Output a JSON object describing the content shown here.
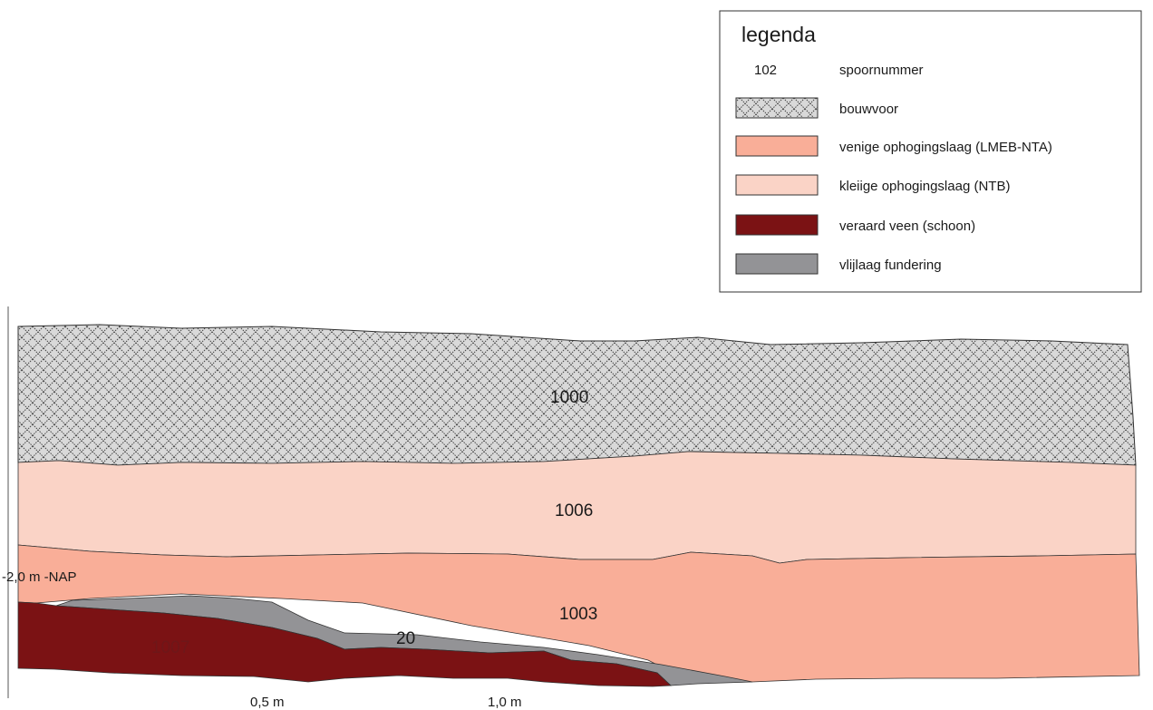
{
  "legend": {
    "title": "legenda",
    "items": [
      {
        "key": "spoornummer",
        "swatch_text": "102",
        "label": "spoornummer"
      },
      {
        "key": "bouwvoor",
        "label": "bouwvoor",
        "pattern": "crosshatch",
        "color": "#c8c8c8"
      },
      {
        "key": "venige",
        "label": "venige ophogingslaag (LMEB-NTA)",
        "color": "#f9ae98"
      },
      {
        "key": "kleiige",
        "label": "kleiige ophogingslaag (NTB)",
        "color": "#fad3c6"
      },
      {
        "key": "veen",
        "label": "veraard veen (schoon)",
        "color": "#7b1214"
      },
      {
        "key": "vlijlaag",
        "label": "vlijlaag fundering",
        "color": "#939396"
      }
    ]
  },
  "section": {
    "layers": [
      {
        "id": "1000",
        "label": "1000",
        "legend_key": "bouwvoor"
      },
      {
        "id": "1006",
        "label": "1006",
        "legend_key": "kleiige"
      },
      {
        "id": "1003",
        "label": "1003",
        "legend_key": "venige"
      },
      {
        "id": "1007",
        "label": "1007",
        "legend_key": "veen"
      },
      {
        "id": "20",
        "label": "20",
        "legend_key": "vlijlaag"
      }
    ],
    "level_label": "-2,0 m -NAP",
    "scale_ticks": [
      "0,5 m",
      "1,0 m"
    ]
  }
}
